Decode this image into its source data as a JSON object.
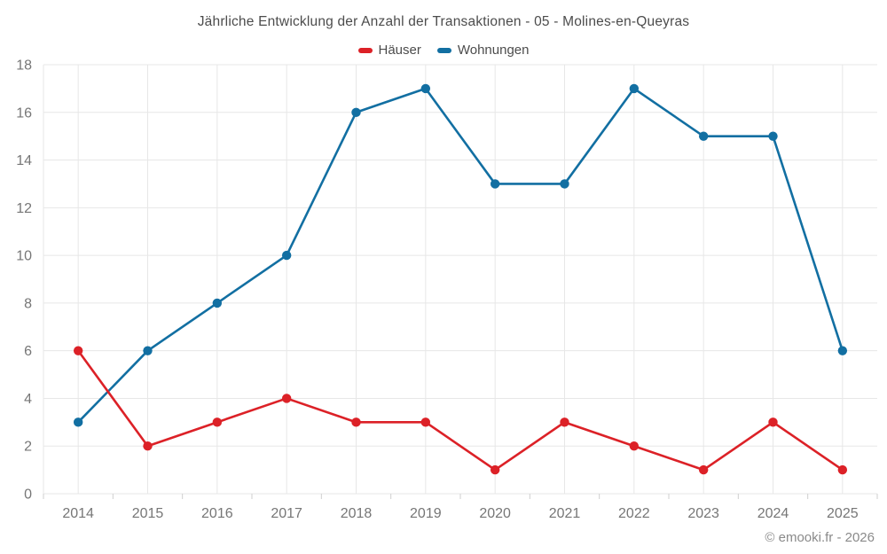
{
  "header": {
    "title": "Jährliche Entwicklung der Anzahl der Transaktionen - 05 - Molines-en-Queyras"
  },
  "footer": {
    "credit": "© emooki.fr - 2026"
  },
  "chart_data": {
    "type": "line",
    "title": "Jährliche Entwicklung der Anzahl der Transaktionen - 05 - Molines-en-Queyras",
    "categories": [
      "2014",
      "2015",
      "2016",
      "2017",
      "2018",
      "2019",
      "2020",
      "2021",
      "2022",
      "2023",
      "2024",
      "2025"
    ],
    "series": [
      {
        "name": "Häuser",
        "color": "#dc2127",
        "values": [
          6,
          2,
          3,
          4,
          3,
          3,
          1,
          3,
          2,
          1,
          3,
          1
        ]
      },
      {
        "name": "Wohnungen",
        "color": "#126fa2",
        "values": [
          3,
          6,
          8,
          10,
          16,
          17,
          13,
          13,
          17,
          15,
          15,
          6
        ]
      }
    ],
    "xlabel": "",
    "ylabel": "",
    "ylim": [
      0,
      18
    ],
    "ytick_step": 2,
    "grid": true,
    "legend_position": "top",
    "colors": {
      "gridline": "#e7e7e7",
      "tick": "#cfcfcf",
      "axis_text": "#767676",
      "title_text": "#4c4c4c"
    },
    "credit": "© emooki.fr - 2026"
  }
}
